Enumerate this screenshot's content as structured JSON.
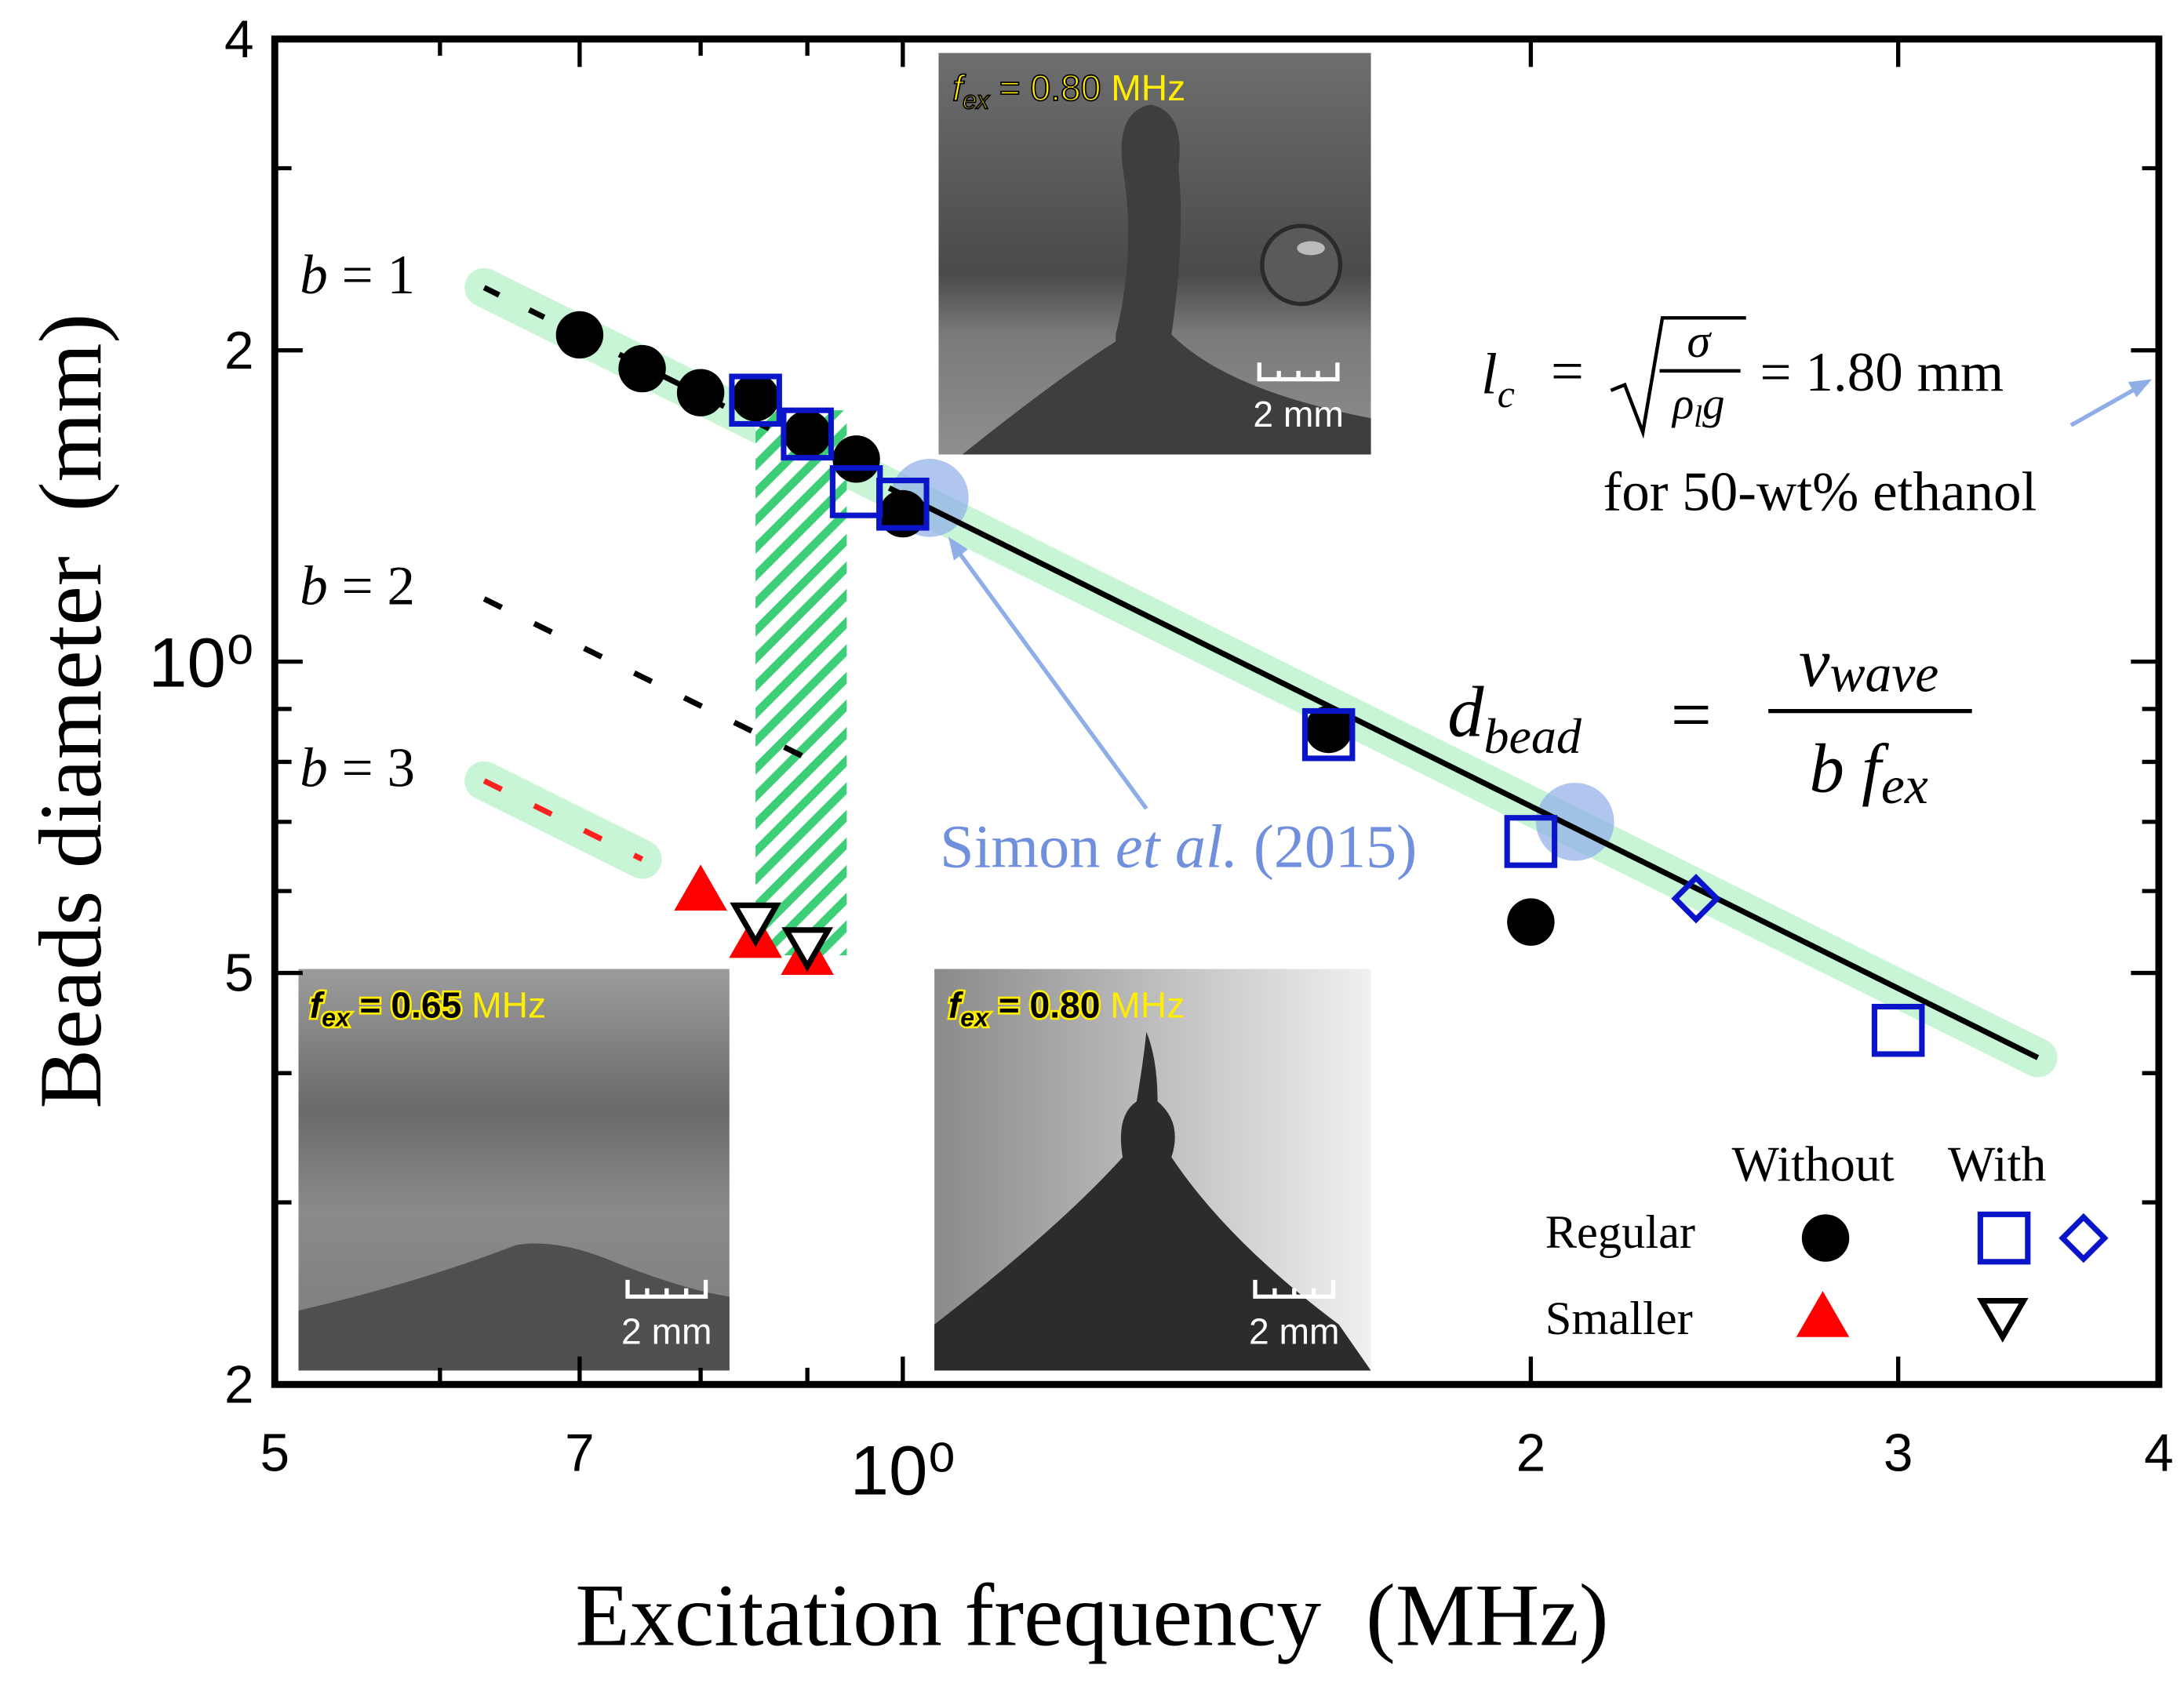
{
  "chart_data": {
    "type": "scatter",
    "xlabel": "Excitation frequency  (MHz)",
    "ylabel": "Beads diameter  (mm)",
    "log_x": true,
    "log_y": true,
    "xlim": [
      0.5,
      4
    ],
    "xticks": [
      {
        "value": 0.5,
        "label": "5"
      },
      {
        "value": 0.7,
        "label": "7"
      },
      {
        "value": 1,
        "label": "10⁰"
      },
      2,
      3,
      4
    ],
    "xminor": [
      0.6,
      0.8,
      0.9
    ],
    "ylim": [
      0.2,
      4
    ],
    "yticks": [
      {
        "value": 0.2,
        "label": "2"
      },
      {
        "value": 0.5,
        "label": "5"
      },
      {
        "value": 1,
        "label": "10⁰"
      },
      2,
      4
    ],
    "yminor": [
      0.3,
      0.4,
      0.6,
      0.7,
      0.8,
      0.9,
      3
    ],
    "series": [
      {
        "marker": "circle",
        "color": "#000000",
        "x": [
          0.7,
          0.75,
          0.8,
          0.85,
          0.9,
          0.95,
          1.0,
          1.6,
          2.0
        ],
        "values": [
          2.07,
          1.92,
          1.82,
          1.8,
          1.66,
          1.57,
          1.39,
          0.86,
          0.56
        ]
      },
      {
        "marker": "square",
        "color": "#0a14c8",
        "x": [
          0.85,
          0.9,
          0.95,
          1.0,
          1.6,
          2.0,
          3.0
        ],
        "values": [
          1.79,
          1.66,
          1.46,
          1.42,
          0.85,
          0.67,
          0.44
        ]
      },
      {
        "marker": "diamond",
        "color": "#0a14c8",
        "x": [
          2.4
        ],
        "values": [
          0.59
        ]
      },
      {
        "marker": "triangle",
        "color": "#ff0000",
        "x": [
          0.8,
          0.85,
          0.9
        ],
        "values": [
          0.6,
          0.54,
          0.52
        ]
      },
      {
        "marker": "down-triangle",
        "color": "#000000",
        "x": [
          0.85,
          0.9
        ],
        "values": [
          0.56,
          0.53
        ]
      }
    ],
    "fits": [
      {
        "label": [
          "b",
          " = 1"
        ],
        "color": "#000000",
        "x": [
          0.63,
          1.0,
          3.5
        ],
        "values": [
          2.3,
          1.45,
          0.414
        ]
      },
      {
        "label": [
          "b",
          " = 2"
        ],
        "color": "#000000",
        "x": [
          0.63,
          0.9
        ],
        "values": [
          1.15,
          0.806
        ]
      },
      {
        "label": [
          "b",
          " = 3"
        ],
        "color": "#ff2020",
        "x": [
          0.63,
          0.75
        ],
        "values": [
          0.767,
          0.644
        ]
      }
    ],
    "band_color": "#c8f5d6",
    "hatched_region": {
      "x": [
        0.85,
        0.94
      ],
      "y": [
        0.52,
        1.75
      ]
    },
    "highlights": {
      "color": "#8faee8",
      "x": [
        1.03,
        2.1
      ],
      "values": [
        1.44,
        0.7
      ]
    },
    "annotation": {
      "parts": [
        "Simon ",
        "et al.",
        " (2015)"
      ],
      "color": "#7090dd"
    },
    "lc_formula": {
      "lhs": "l",
      "lhs_sub": "c",
      "equals": "=",
      "numerator": "σ",
      "denominator": "ρ",
      "denominator_sub": "l",
      "denominator_tail": "g",
      "rhs": "= 1.80 mm",
      "note": "for 50-wt% ethanol"
    },
    "d_formula": {
      "lhs": "d",
      "lhs_sub": "bead",
      "equals": "=",
      "numerator": "v",
      "numerator_sub": "wave",
      "denominator": "b f",
      "denominator_sub": "ex"
    },
    "legend": {
      "columns": [
        "Without",
        "With"
      ],
      "rows": [
        "Regular",
        "Smaller"
      ]
    },
    "insets": [
      {
        "f": "f",
        "sub": "ex",
        "eq": " = 0.80 ",
        "unit": "MHz",
        "scale": "2 mm"
      },
      {
        "f": "f",
        "sub": "ex",
        "eq": " = 0.65 ",
        "unit": "MHz",
        "scale": "2 mm"
      },
      {
        "f": "f",
        "sub": "ex",
        "eq": " = 0.80 ",
        "unit": "MHz",
        "scale": "2 mm"
      }
    ]
  }
}
